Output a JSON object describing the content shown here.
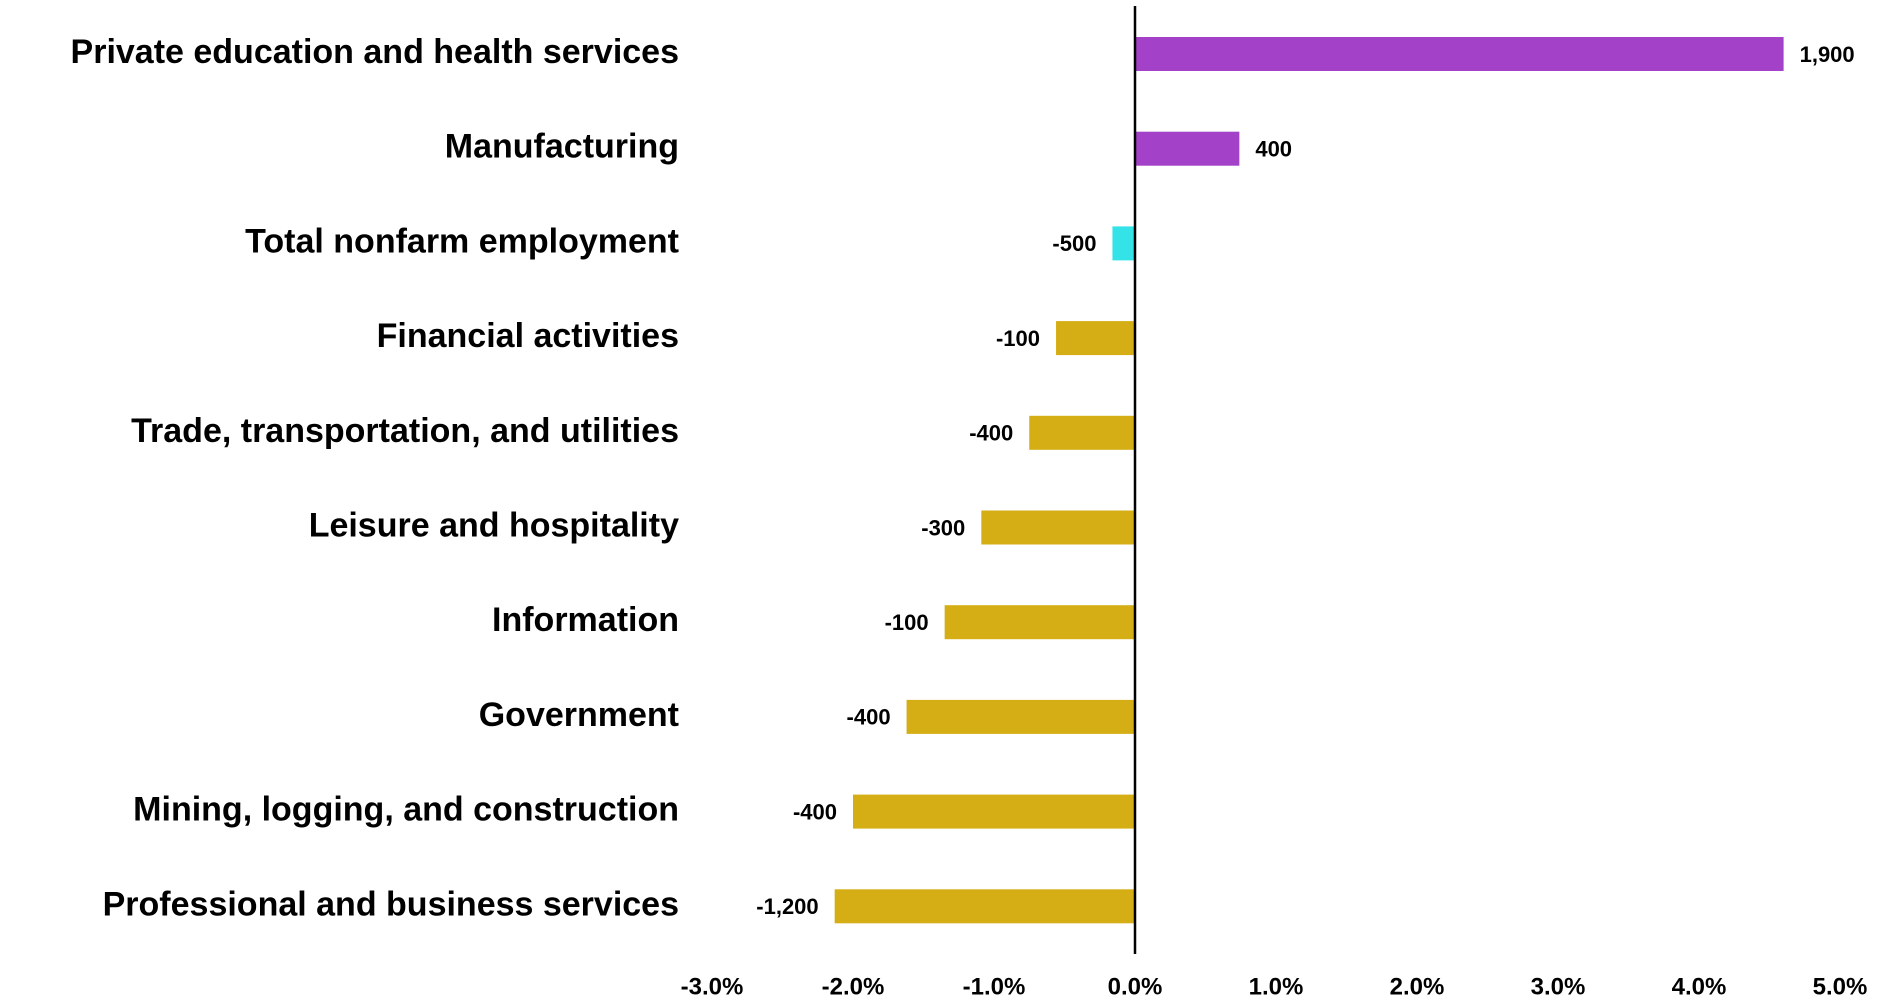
{
  "chart_data": {
    "type": "hbar",
    "categories": [
      "Private education and health services",
      "Manufacturing",
      "Total nonfarm employment",
      "Financial activities",
      "Trade, transportation, and utilities",
      "Leisure and hospitality",
      "Information",
      "Government",
      "Mining, logging, and construction",
      "Professional and business services"
    ],
    "values": [
      4.6,
      0.74,
      -0.16,
      -0.56,
      -0.75,
      -1.09,
      -1.35,
      -1.62,
      -2.0,
      -2.13
    ],
    "job_change_labels": [
      "1,900",
      "400",
      "-500",
      "-100",
      "-400",
      "-300",
      "-100",
      "-400",
      "-400",
      "-1,200"
    ],
    "colors": [
      "#a342c8",
      "#a342c8",
      "#33e3e8",
      "#d4ae14",
      "#d4ae14",
      "#d4ae14",
      "#d4ae14",
      "#d4ae14",
      "#d4ae14",
      "#d4ae14"
    ],
    "xlim": [
      -3,
      5
    ],
    "xticks": [
      {
        "value": -3,
        "label": "-3.0%"
      },
      {
        "value": -2,
        "label": "-2.0%"
      },
      {
        "value": -1,
        "label": "-1.0%"
      },
      {
        "value": 0,
        "label": "0.0%"
      },
      {
        "value": 1,
        "label": "1.0%"
      },
      {
        "value": 2,
        "label": "2.0%"
      },
      {
        "value": 3,
        "label": "3.0%"
      },
      {
        "value": 4,
        "label": "4.0%"
      },
      {
        "value": 5,
        "label": "5.0%"
      }
    ],
    "grid": false
  }
}
